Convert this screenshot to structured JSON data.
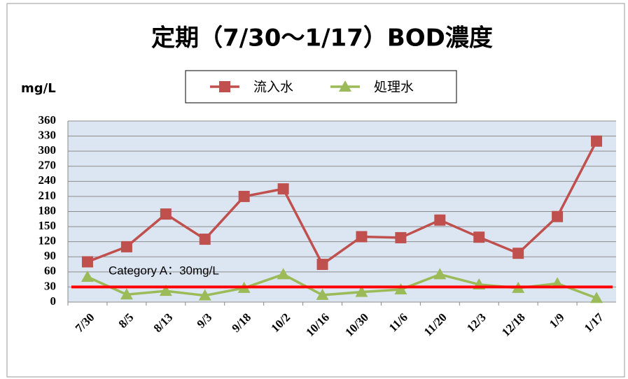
{
  "chart_data": {
    "type": "line",
    "title": "定期（7/30～1/17）BOD濃度",
    "y_axis_label": "mg/L",
    "categories": [
      "7/30",
      "8/5",
      "8/13",
      "9/3",
      "9/18",
      "10/2",
      "10/16",
      "10/30",
      "11/6",
      "11/20",
      "12/3",
      "12/18",
      "1/9",
      "1/17"
    ],
    "series": [
      {
        "name": "流入水",
        "color": "#c0504d",
        "marker": "square",
        "values": [
          80,
          110,
          175,
          125,
          210,
          225,
          75,
          130,
          128,
          163,
          129,
          97,
          170,
          320
        ]
      },
      {
        "name": "処理水",
        "color": "#9bbb59",
        "marker": "triangle",
        "values": [
          50,
          15,
          22,
          13,
          28,
          55,
          14,
          20,
          25,
          55,
          35,
          28,
          37,
          8
        ]
      }
    ],
    "ylim": [
      0,
      360
    ],
    "yticks": [
      0,
      30,
      60,
      90,
      120,
      150,
      180,
      210,
      240,
      270,
      300,
      330,
      360
    ],
    "grid": true,
    "legend": "top",
    "reference_line": {
      "value": 30,
      "color": "#ff0000",
      "label": "Category A：30mg/L"
    }
  }
}
